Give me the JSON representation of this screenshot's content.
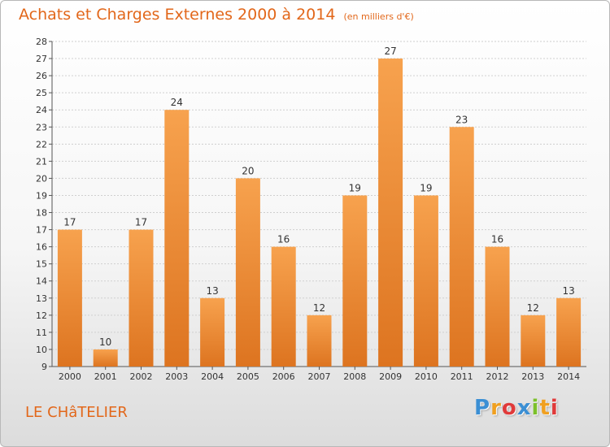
{
  "header": {
    "title": "Achats et Charges Externes 2000 à 2014",
    "subtitle": "(en milliers d'€)"
  },
  "footer": {
    "place": "LE CHâTELIER",
    "logo_letters": [
      {
        "ch": "P",
        "color": "#3b8fd4"
      },
      {
        "ch": "r",
        "color": "#f0a020"
      },
      {
        "ch": "o",
        "color": "#e03a3a"
      },
      {
        "ch": "x",
        "color": "#3b8fd4"
      },
      {
        "ch": "i",
        "color": "#7cc02a"
      },
      {
        "ch": "t",
        "color": "#f0a020"
      },
      {
        "ch": "i",
        "color": "#e03a3a"
      }
    ]
  },
  "colors": {
    "bar_top": "#f7a24e",
    "bar_bottom": "#dd7420",
    "grid": "#cfcfcf",
    "accent": "#e2671a"
  },
  "chart_data": {
    "type": "bar",
    "title": "Achats et Charges Externes 2000 à 2014",
    "subtitle": "(en milliers d'€)",
    "categories": [
      "2000",
      "2001",
      "2002",
      "2003",
      "2004",
      "2005",
      "2006",
      "2007",
      "2008",
      "2009",
      "2010",
      "2011",
      "2012",
      "2013",
      "2014"
    ],
    "values": [
      17,
      10,
      17,
      24,
      13,
      20,
      16,
      12,
      19,
      27,
      19,
      23,
      16,
      12,
      13
    ],
    "ylim": [
      9,
      28
    ],
    "yticks": [
      9,
      10,
      11,
      12,
      13,
      14,
      15,
      16,
      17,
      18,
      19,
      20,
      21,
      22,
      23,
      24,
      25,
      26,
      27,
      28
    ],
    "xlabel": "",
    "ylabel": "",
    "grid": true
  }
}
